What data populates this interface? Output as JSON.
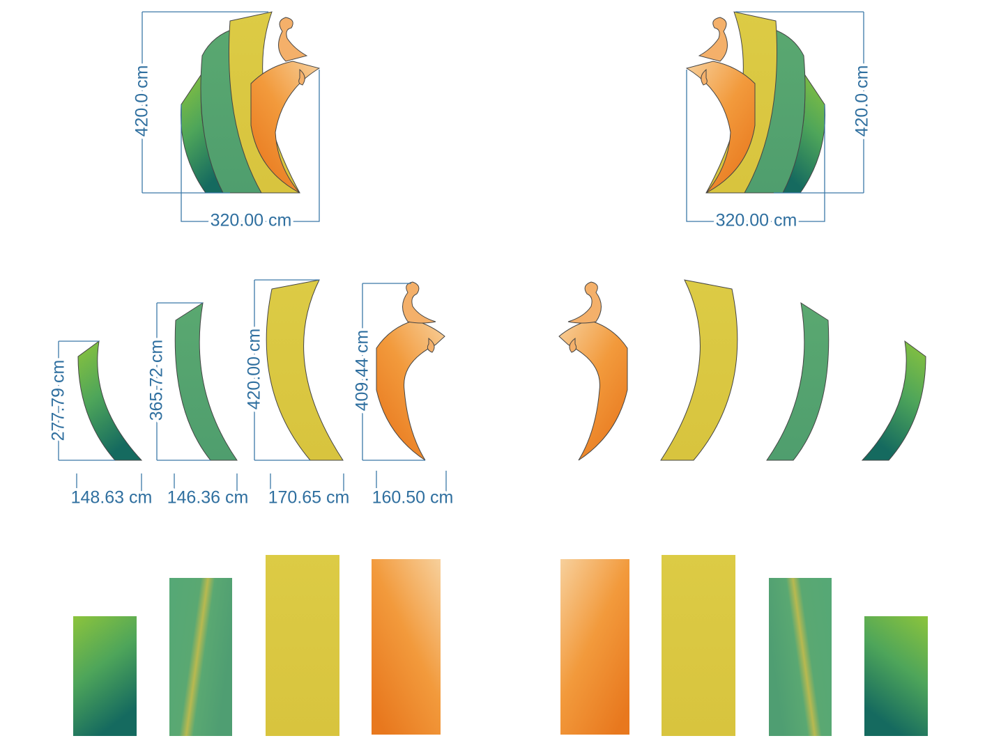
{
  "assemblies": [
    {
      "height": "420.0 cm",
      "width": "320.00 cm"
    },
    {
      "height": "420.0 cm",
      "width": "320.00 cm"
    }
  ],
  "pieces": [
    {
      "height": "277.79 cm",
      "width": "148.63 cm"
    },
    {
      "height": "365.72 cm",
      "width": "146.36 cm"
    },
    {
      "height": "420.00 cm",
      "width": "170.65 cm"
    },
    {
      "height": "409.44 cm",
      "width": "160.50 cm"
    }
  ]
}
